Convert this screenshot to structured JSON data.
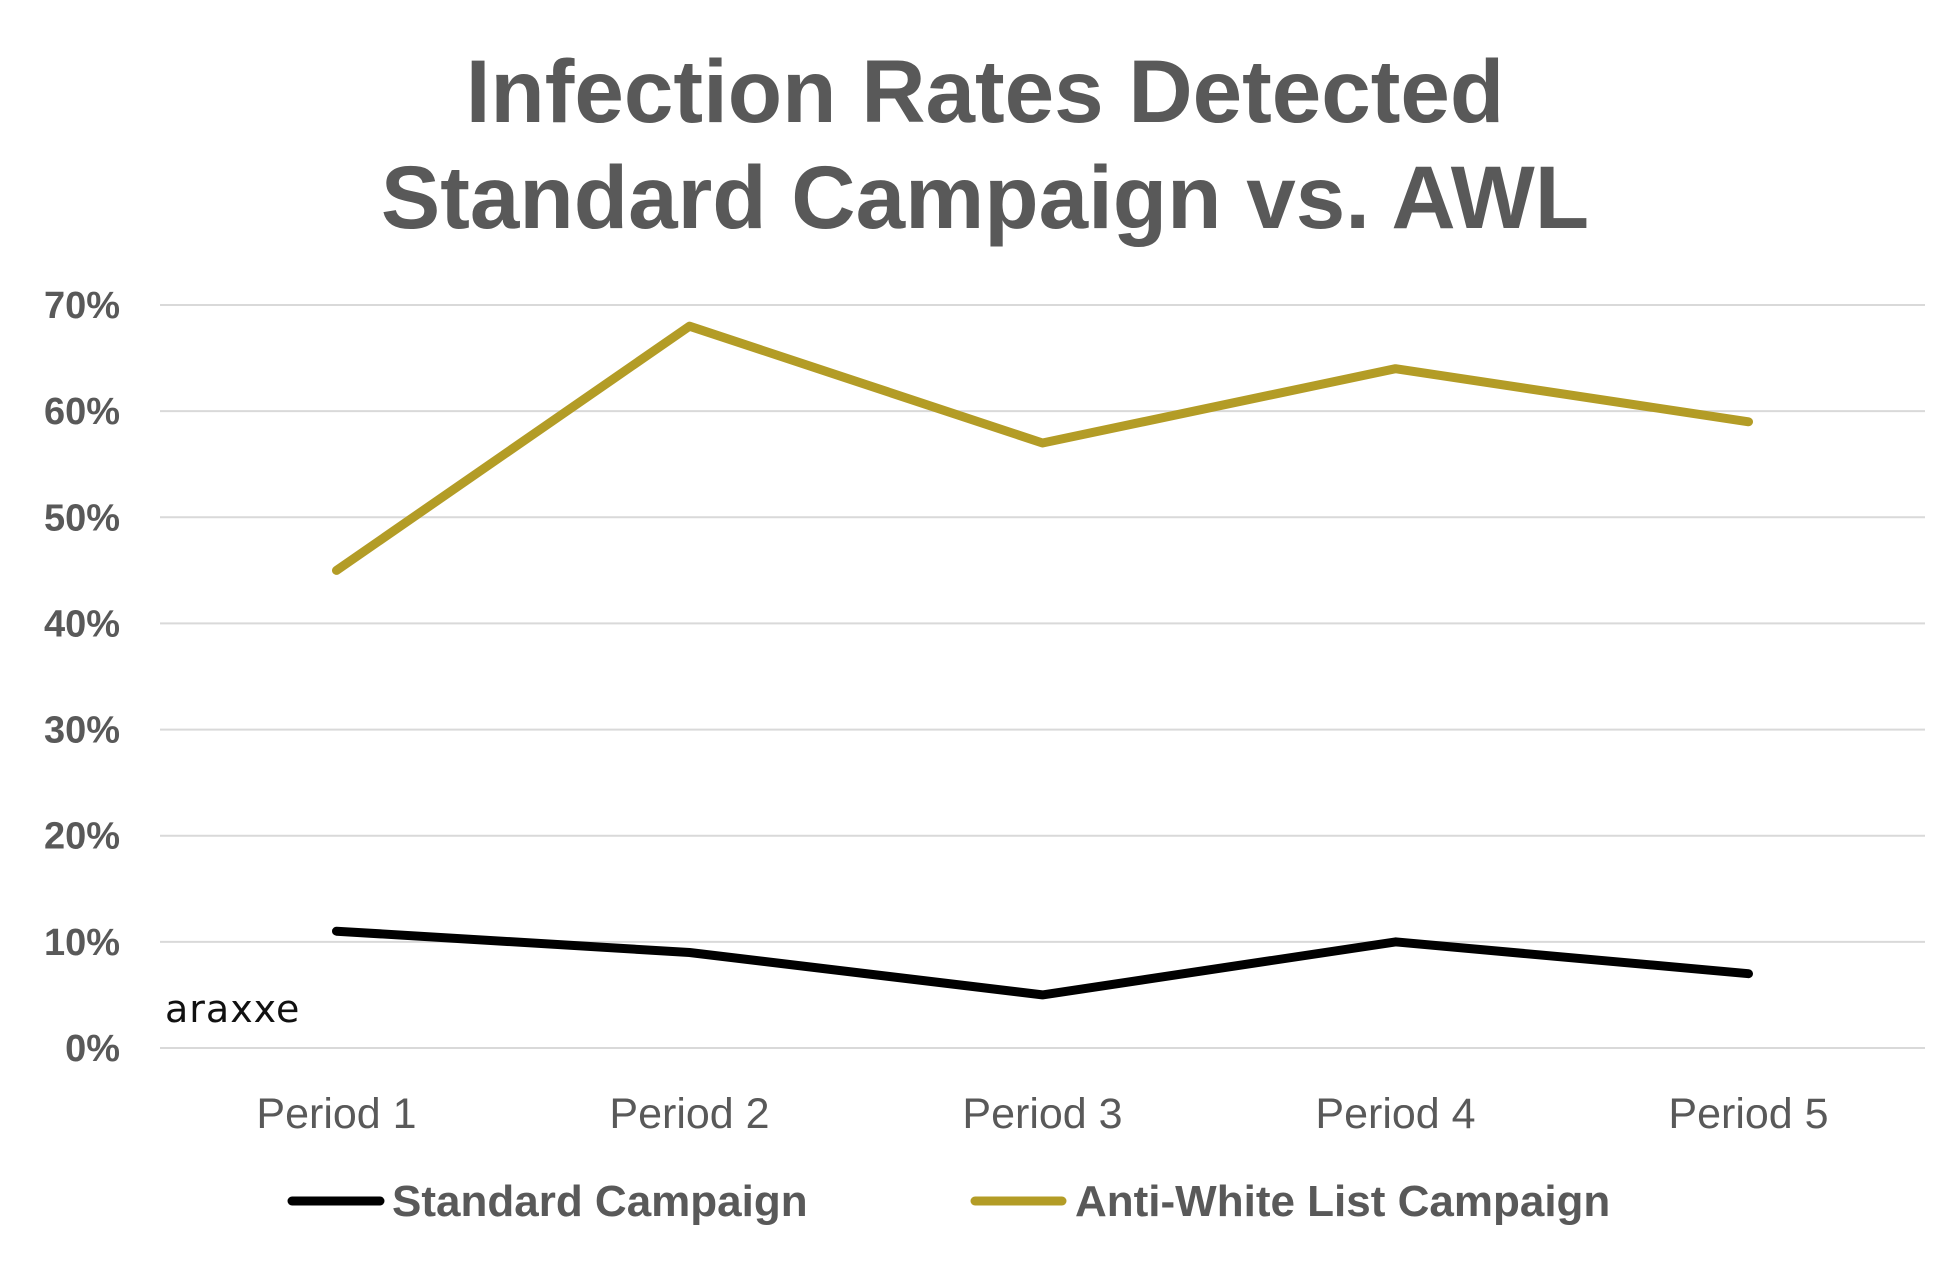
{
  "chart_data": {
    "type": "line",
    "title": [
      "Infection Rates Detected",
      "Standard Campaign vs. AWL"
    ],
    "xlabel": "",
    "ylabel": "",
    "categories": [
      "Period 1",
      "Period 2",
      "Period 3",
      "Period 4",
      "Period 5"
    ],
    "ylim": [
      0,
      70
    ],
    "yticks": [
      0,
      10,
      20,
      30,
      40,
      50,
      60,
      70
    ],
    "ytick_labels": [
      "0%",
      "10%",
      "20%",
      "30%",
      "40%",
      "50%",
      "60%",
      "70%"
    ],
    "grid": "horizontal",
    "legend_position": "bottom",
    "series": [
      {
        "name": "Standard Campaign",
        "color": "#000000",
        "values": [
          11,
          9,
          5,
          10,
          7
        ]
      },
      {
        "name": "Anti-White List Campaign",
        "color": "#b39c26",
        "values": [
          45,
          68,
          57,
          64,
          59
        ]
      }
    ]
  },
  "watermark": {
    "text": "araxxe"
  }
}
